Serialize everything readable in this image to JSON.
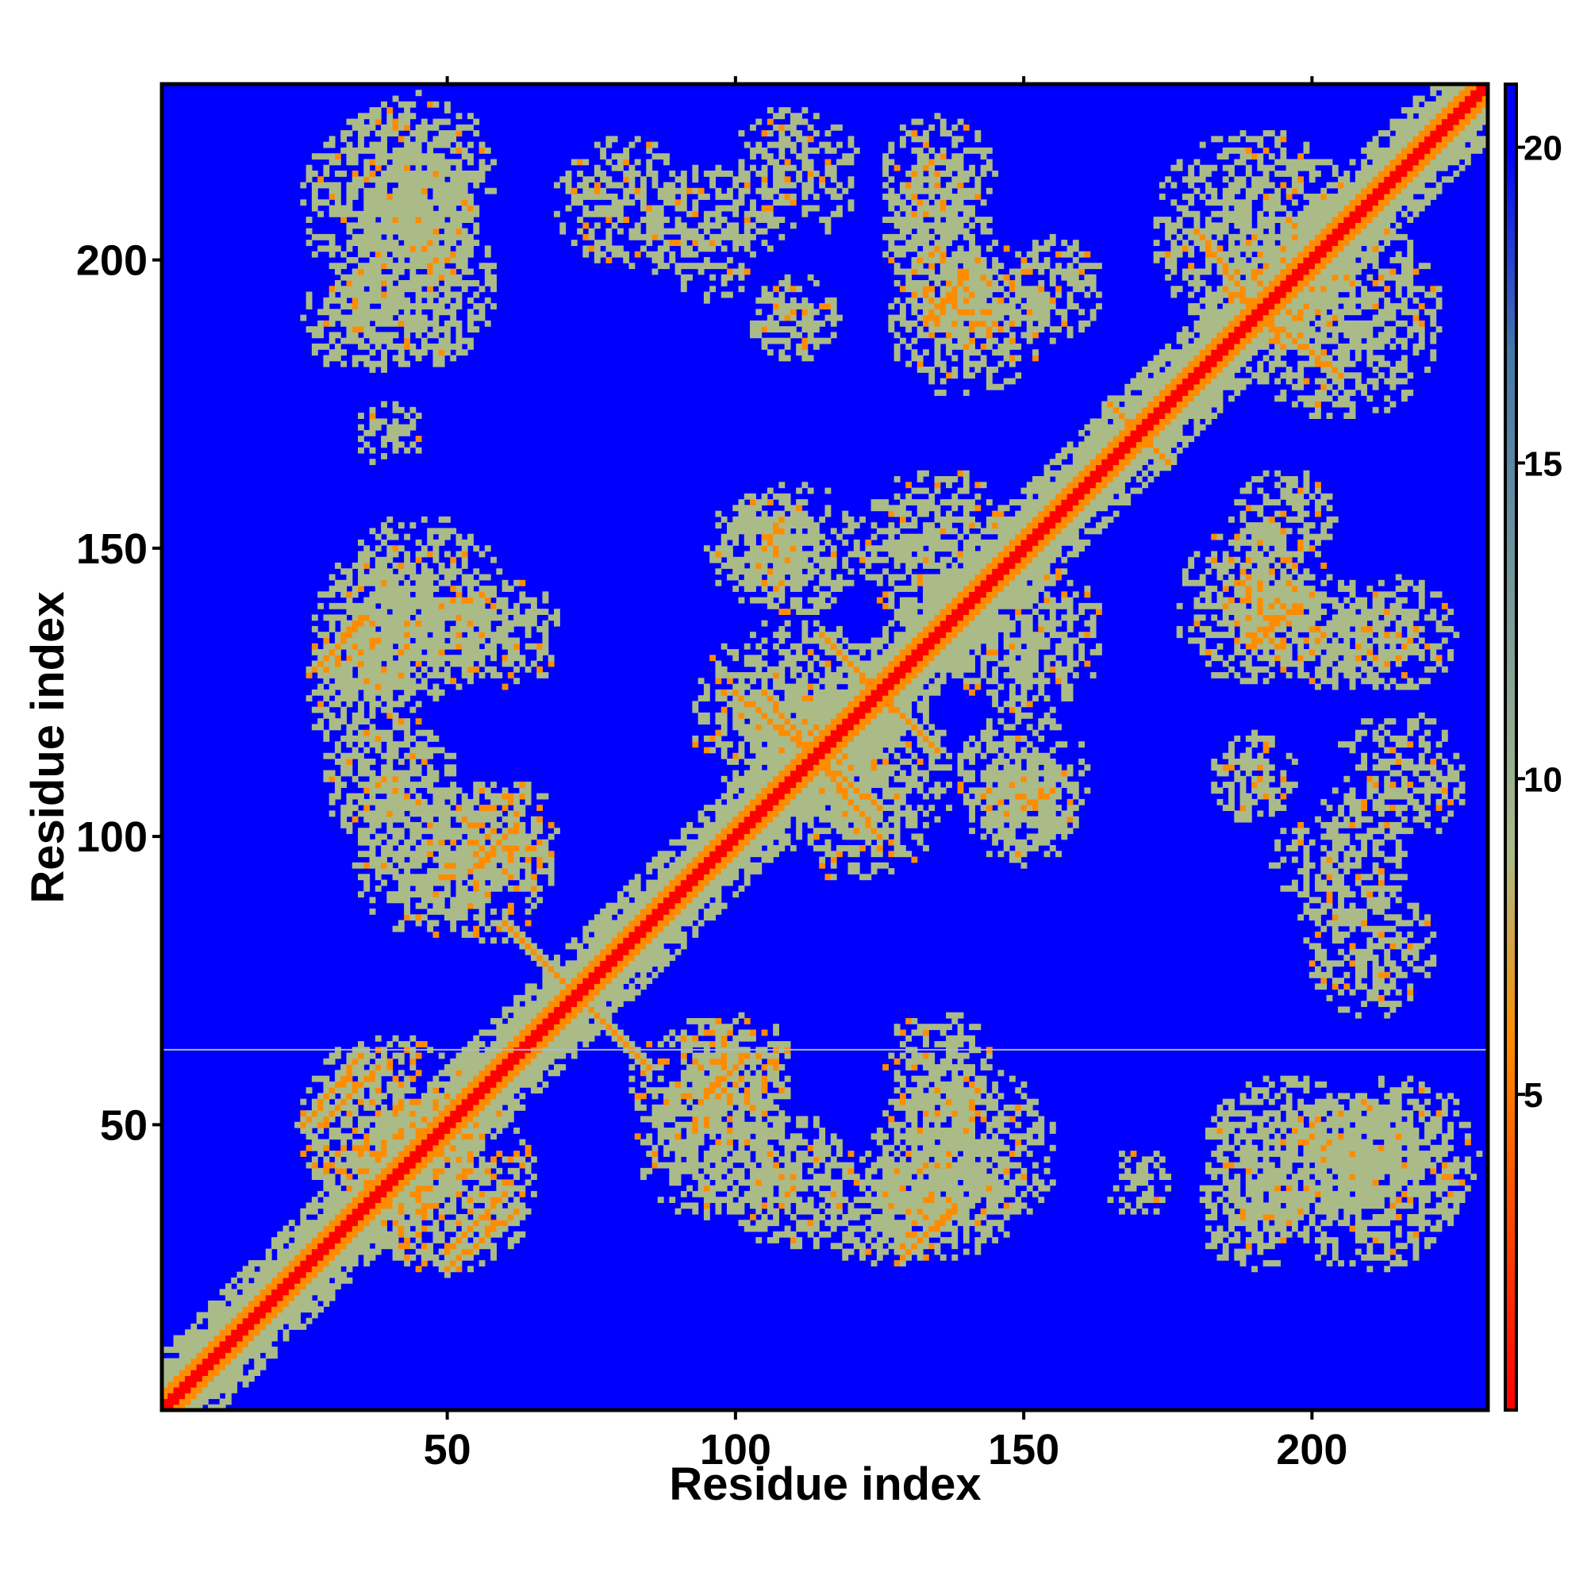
{
  "chart_data": {
    "type": "heatmap",
    "title": "",
    "xlabel": "Residue index",
    "ylabel": "Residue index",
    "xlim": [
      1,
      230
    ],
    "ylim": [
      1,
      230
    ],
    "xticks": [
      50,
      100,
      150,
      200
    ],
    "yticks": [
      50,
      100,
      150,
      200
    ],
    "colorbar": {
      "ticks": [
        5,
        10,
        15,
        20
      ],
      "range": [
        0,
        21
      ],
      "colors": [
        "#ff0000",
        "#ff8c00",
        "#aabb88",
        "#4477aa",
        "#0000ff"
      ]
    },
    "background_color": "#0000ff",
    "colors": {
      "very_close": "#ff0000",
      "close": "#ff8c00",
      "medium": "#aabb88",
      "far": "#0000ff"
    },
    "grid": false,
    "diagonal": {
      "from": 1,
      "to": 230
    },
    "contact_regions": [
      {
        "cx": 40,
        "cy": 210,
        "r": 16,
        "v": 11
      },
      {
        "cx": 35,
        "cy": 190,
        "r": 10,
        "v": 13
      },
      {
        "cx": 95,
        "cy": 205,
        "r": 12,
        "v": 14
      },
      {
        "cx": 110,
        "cy": 190,
        "r": 8,
        "v": 12
      },
      {
        "cx": 135,
        "cy": 205,
        "r": 10,
        "v": 12
      },
      {
        "cx": 140,
        "cy": 192,
        "r": 8,
        "v": 9
      },
      {
        "cx": 155,
        "cy": 195,
        "r": 9,
        "v": 14
      },
      {
        "cx": 190,
        "cy": 205,
        "r": 18,
        "v": 11
      },
      {
        "cx": 40,
        "cy": 135,
        "r": 14,
        "v": 10
      },
      {
        "cx": 60,
        "cy": 135,
        "r": 10,
        "v": 12
      },
      {
        "cx": 40,
        "cy": 110,
        "r": 12,
        "v": 12
      },
      {
        "cx": 45,
        "cy": 95,
        "r": 12,
        "v": 10
      },
      {
        "cx": 60,
        "cy": 100,
        "r": 10,
        "v": 9
      },
      {
        "cx": 110,
        "cy": 120,
        "r": 18,
        "v": 10
      },
      {
        "cx": 105,
        "cy": 150,
        "r": 10,
        "v": 10
      },
      {
        "cx": 135,
        "cy": 150,
        "r": 14,
        "v": 11
      },
      {
        "cx": 150,
        "cy": 110,
        "r": 12,
        "v": 11
      },
      {
        "cx": 190,
        "cy": 140,
        "r": 14,
        "v": 10
      },
      {
        "cx": 215,
        "cy": 135,
        "r": 10,
        "v": 12
      },
      {
        "cx": 215,
        "cy": 110,
        "r": 12,
        "v": 14
      },
      {
        "cx": 210,
        "cy": 80,
        "r": 12,
        "v": 14
      },
      {
        "cx": 40,
        "cy": 50,
        "r": 16,
        "v": 9
      },
      {
        "cx": 95,
        "cy": 55,
        "r": 14,
        "v": 11
      },
      {
        "cx": 140,
        "cy": 45,
        "r": 16,
        "v": 11
      },
      {
        "cx": 125,
        "cy": 35,
        "r": 10,
        "v": 13
      },
      {
        "cx": 195,
        "cy": 45,
        "r": 14,
        "v": 12
      },
      {
        "cx": 215,
        "cy": 45,
        "r": 14,
        "v": 10
      },
      {
        "cx": 170,
        "cy": 40,
        "r": 6,
        "v": 14
      }
    ],
    "antidiagonal_streaks": [
      {
        "x1": 105,
        "y1": 125,
        "x2": 125,
        "y2": 100,
        "v": 6
      },
      {
        "x1": 115,
        "y1": 135,
        "x2": 130,
        "y2": 120,
        "v": 6
      },
      {
        "x1": 65,
        "y1": 80,
        "x2": 85,
        "y2": 60,
        "v": 7
      },
      {
        "x1": 25,
        "y1": 50,
        "x2": 35,
        "y2": 62,
        "v": 6
      },
      {
        "x1": 50,
        "y1": 28,
        "x2": 60,
        "y2": 38,
        "v": 7
      },
      {
        "x1": 132,
        "y1": 30,
        "x2": 138,
        "y2": 36,
        "v": 6
      },
      {
        "x1": 133,
        "y1": 190,
        "x2": 140,
        "y2": 197,
        "v": 6
      },
      {
        "x1": 165,
        "y1": 175,
        "x2": 175,
        "y2": 165,
        "v": 6
      },
      {
        "x1": 180,
        "y1": 205,
        "x2": 195,
        "y2": 185,
        "v": 7
      },
      {
        "x1": 190,
        "y1": 135,
        "x2": 198,
        "y2": 140,
        "v": 6
      },
      {
        "x1": 28,
        "y1": 130,
        "x2": 35,
        "y2": 138,
        "v": 6
      },
      {
        "x1": 95,
        "y1": 55,
        "x2": 102,
        "y2": 62,
        "v": 6
      },
      {
        "x1": 150,
        "y1": 105,
        "x2": 155,
        "y2": 108,
        "v": 6
      }
    ],
    "horizontal_line": {
      "y": 63,
      "color": "#aabbcc"
    }
  }
}
